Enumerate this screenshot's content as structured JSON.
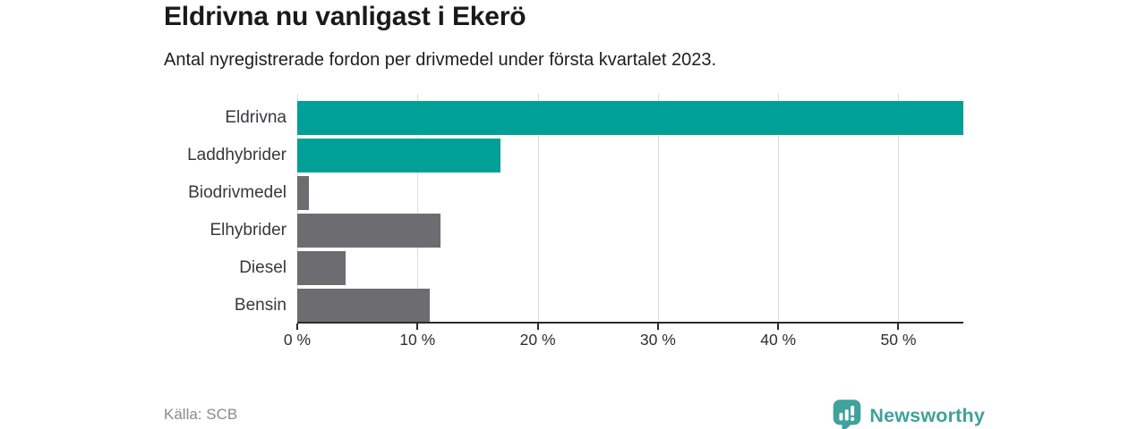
{
  "header": {
    "title": "Eldrivna nu vanligast i Ekerö",
    "subtitle": "Antal nyregistrerade fordon per drivmedel under första kvartalet 2023."
  },
  "footer": {
    "source": "Källa: SCB",
    "brand": "Newsworthy"
  },
  "colors": {
    "teal": "#00a096",
    "gray": "#6c6c71",
    "grid": "#dcdcdc",
    "axis": "#2b2b2e",
    "logo_teal": "#3fa29b"
  },
  "chart_data": {
    "type": "bar",
    "orientation": "horizontal",
    "title": "Eldrivna nu vanligast i Ekerö",
    "subtitle": "Antal nyregistrerade fordon per drivmedel under första kvartalet 2023.",
    "categories": [
      "Eldrivna",
      "Laddhybrider",
      "Biodrivmedel",
      "Elhybrider",
      "Diesel",
      "Bensin"
    ],
    "values": [
      55.4,
      16.9,
      1.0,
      11.9,
      4.0,
      11.0
    ],
    "unit": "%",
    "xlim": [
      0,
      55.4
    ],
    "xticks": [
      0,
      10,
      20,
      30,
      40,
      50
    ],
    "xtick_labels": [
      "0 %",
      "10 %",
      "20 %",
      "30 %",
      "40 %",
      "50 %"
    ],
    "bar_colors": [
      "teal",
      "teal",
      "gray",
      "gray",
      "gray",
      "gray"
    ],
    "grid": true,
    "legend": false,
    "source": "Källa: SCB"
  }
}
